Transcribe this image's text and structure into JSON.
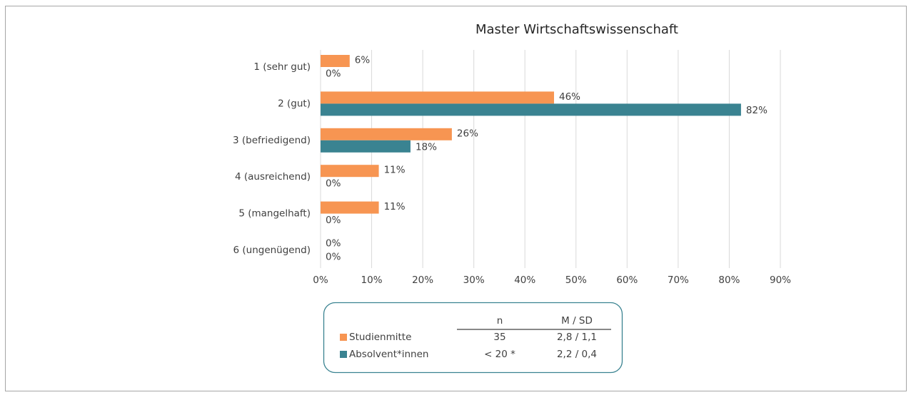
{
  "chart_data": {
    "type": "hbar",
    "title": "Master Wirtschaftswissenschaft",
    "categories": [
      "1 (sehr gut)",
      "2 (gut)",
      "3 (befriedigend)",
      "4 (ausreichend)",
      "5 (mangelhaft)",
      "6 (ungenügend)"
    ],
    "series": [
      {
        "name": "Studienmitte",
        "color": "#f79552",
        "values": [
          5.7,
          45.7,
          25.7,
          11.4,
          11.4,
          0
        ],
        "value_labels": [
          "6%",
          "46%",
          "26%",
          "11%",
          "11%",
          "0%"
        ]
      },
      {
        "name": "Absolvent*innen",
        "color": "#3a8391",
        "values": [
          0,
          82.3,
          17.6,
          0,
          0,
          0
        ],
        "value_labels": [
          "0%",
          "82%",
          "18%",
          "0%",
          "0%",
          "0%"
        ]
      }
    ],
    "xlim": [
      0,
      90
    ],
    "xticks": [
      {
        "value": 0,
        "label": "0%"
      },
      {
        "value": 10,
        "label": "10%"
      },
      {
        "value": 20,
        "label": "20%"
      },
      {
        "value": 30,
        "label": "30%"
      },
      {
        "value": 40,
        "label": "40%"
      },
      {
        "value": 50,
        "label": "50%"
      },
      {
        "value": 60,
        "label": "60%"
      },
      {
        "value": 70,
        "label": "70%"
      },
      {
        "value": 80,
        "label": "80%"
      },
      {
        "value": 90,
        "label": "90%"
      }
    ],
    "grid": true,
    "legend_table": {
      "columns": [
        "n",
        "M / SD"
      ],
      "rows": [
        [
          "35",
          "2,8 / 1,1"
        ],
        [
          "< 20 *",
          "2,2 / 0,4"
        ]
      ]
    }
  }
}
